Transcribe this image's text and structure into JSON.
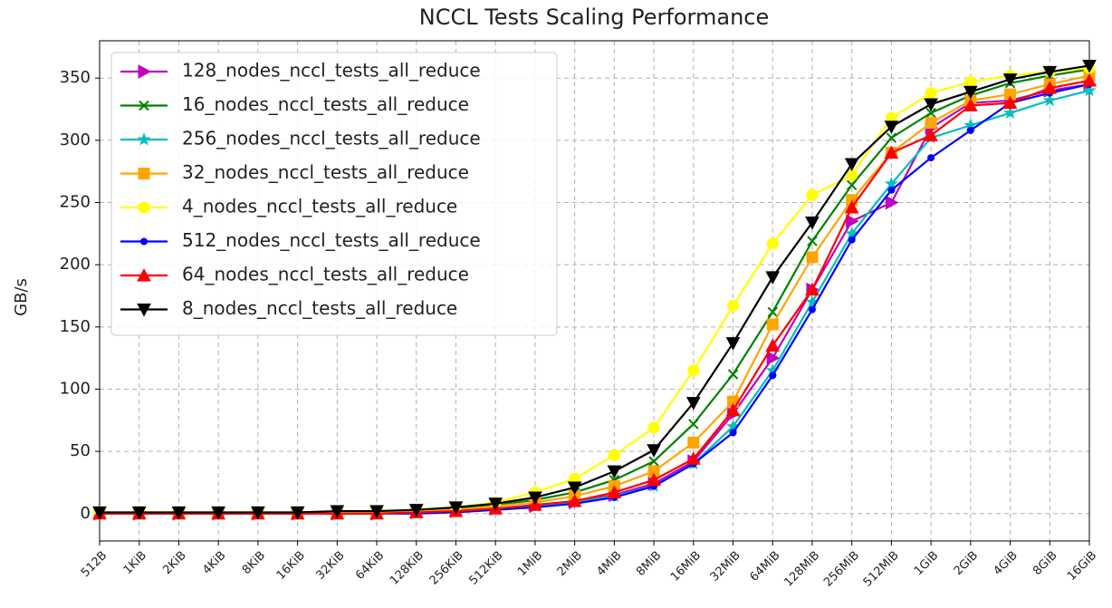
{
  "chart_data": {
    "type": "line",
    "title": "NCCL Tests Scaling Performance",
    "y_label": "GB/s",
    "categories": [
      "512B",
      "1KiB",
      "2KiB",
      "4KiB",
      "8KiB",
      "16KiB",
      "32KiB",
      "64KiB",
      "128KiB",
      "256KiB",
      "512KiB",
      "1MiB",
      "2MiB",
      "4MiB",
      "8MiB",
      "16MiB",
      "32MiB",
      "64MiB",
      "128MiB",
      "256MiB",
      "512MiB",
      "1GiB",
      "2GiB",
      "4GiB",
      "8GiB",
      "16GiB"
    ],
    "ylim": [
      -22,
      380
    ],
    "yticks": [
      0,
      50,
      100,
      150,
      200,
      250,
      300,
      350
    ],
    "grid": true,
    "legend": "upper left",
    "series": [
      {
        "name": "128_nodes_nccl_tests_all_reduce",
        "color": "#bf00bf",
        "marker": "triangle-right",
        "values": [
          0,
          0,
          0,
          0,
          0,
          0,
          0,
          0,
          1,
          2,
          4,
          6,
          9,
          15,
          24,
          42,
          80,
          125,
          180,
          235,
          250,
          310,
          330,
          332,
          340,
          345
        ]
      },
      {
        "name": "16_nodes_nccl_tests_all_reduce",
        "color": "#008000",
        "marker": "x",
        "values": [
          0,
          0,
          0,
          0,
          0,
          0,
          1,
          1,
          2,
          4,
          7,
          11,
          17,
          27,
          42,
          72,
          112,
          162,
          219,
          264,
          302,
          322,
          336,
          346,
          352,
          357
        ]
      },
      {
        "name": "256_nodes_nccl_tests_all_reduce",
        "color": "#00bfbf",
        "marker": "star",
        "values": [
          0,
          0,
          0,
          0,
          0,
          0,
          0,
          0,
          1,
          2,
          3,
          6,
          9,
          14,
          22,
          40,
          70,
          115,
          170,
          225,
          265,
          302,
          312,
          322,
          332,
          340
        ]
      },
      {
        "name": "32_nodes_nccl_tests_all_reduce",
        "color": "#ffa500",
        "marker": "square",
        "values": [
          0,
          0,
          0,
          0,
          0,
          0,
          0,
          1,
          2,
          3,
          6,
          9,
          14,
          22,
          34,
          57,
          90,
          152,
          206,
          252,
          290,
          314,
          332,
          337,
          345,
          352
        ]
      },
      {
        "name": "4_nodes_nccl_tests_all_reduce",
        "color": "#ffff00",
        "marker": "circle",
        "values": [
          1,
          1,
          1,
          1,
          1,
          1,
          1,
          2,
          3,
          5,
          9,
          17,
          28,
          47,
          69,
          115,
          167,
          217,
          256,
          272,
          318,
          338,
          347,
          352,
          355,
          358
        ]
      },
      {
        "name": "512_nodes_nccl_tests_all_reduce",
        "color": "#0000ff",
        "marker": "dot",
        "values": [
          0,
          0,
          0,
          0,
          0,
          0,
          0,
          0,
          0,
          1,
          3,
          5,
          8,
          13,
          22,
          40,
          65,
          111,
          164,
          220,
          260,
          286,
          308,
          330,
          338,
          345
        ]
      },
      {
        "name": "64_nodes_nccl_tests_all_reduce",
        "color": "#ff0000",
        "marker": "triangle-up",
        "values": [
          0,
          0,
          0,
          0,
          0,
          0,
          0,
          0,
          1,
          2,
          4,
          7,
          10,
          17,
          27,
          44,
          83,
          135,
          180,
          246,
          290,
          304,
          328,
          330,
          342,
          348
        ]
      },
      {
        "name": "8_nodes_nccl_tests_all_reduce",
        "color": "#000000",
        "marker": "triangle-down",
        "values": [
          1,
          1,
          1,
          1,
          1,
          1,
          2,
          2,
          3,
          5,
          8,
          13,
          21,
          34,
          51,
          89,
          137,
          190,
          234,
          281,
          311,
          329,
          339,
          349,
          355,
          360
        ]
      }
    ]
  }
}
